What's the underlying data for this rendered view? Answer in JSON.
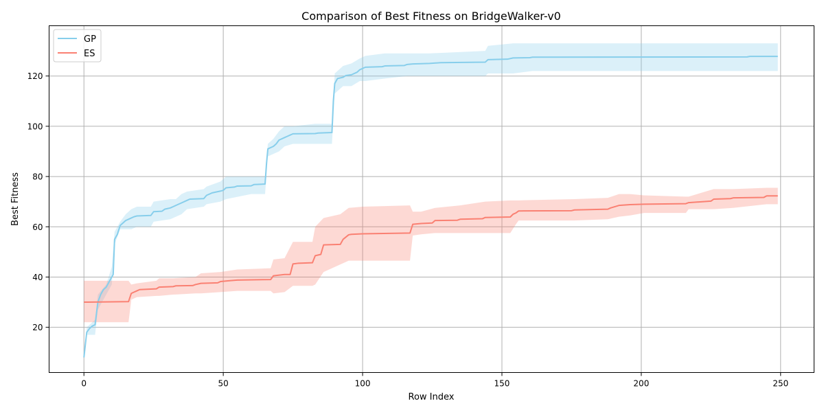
{
  "chart_data": {
    "type": "line",
    "title": "Comparison of Best Fitness on BridgeWalker-v0",
    "xlabel": "Row Index",
    "ylabel": "Best Fitness",
    "xlim": [
      -12.5,
      262
    ],
    "ylim": [
      2,
      140
    ],
    "xticks": [
      0,
      50,
      100,
      150,
      200,
      250
    ],
    "yticks": [
      20,
      40,
      60,
      80,
      100,
      120
    ],
    "grid": true,
    "legend_position": "upper-left",
    "series": [
      {
        "name": "GP",
        "color": "#87ceeb",
        "band_color": "#87ceeb",
        "mean": [
          [
            0,
            8
          ],
          [
            1,
            18
          ],
          [
            2,
            19.5
          ],
          [
            3,
            20.5
          ],
          [
            4,
            21
          ],
          [
            5,
            30
          ],
          [
            6,
            33
          ],
          [
            7,
            35
          ],
          [
            8,
            36
          ],
          [
            9,
            38
          ],
          [
            10,
            40
          ],
          [
            10.5,
            41
          ],
          [
            11,
            55
          ],
          [
            12,
            57
          ],
          [
            13,
            60.5
          ],
          [
            14,
            61.5
          ],
          [
            15,
            62.5
          ],
          [
            16,
            63
          ],
          [
            17,
            63.5
          ],
          [
            18,
            64
          ],
          [
            19,
            64.3
          ],
          [
            24,
            64.5
          ],
          [
            25,
            66
          ],
          [
            28,
            66.2
          ],
          [
            29,
            67
          ],
          [
            31,
            67.5
          ],
          [
            33,
            68.5
          ],
          [
            35,
            69.5
          ],
          [
            37,
            70.5
          ],
          [
            38,
            71
          ],
          [
            43,
            71.2
          ],
          [
            44,
            72.5
          ],
          [
            46,
            73.5
          ],
          [
            49,
            74.2
          ],
          [
            50,
            74.5
          ],
          [
            51,
            75.5
          ],
          [
            54,
            75.8
          ],
          [
            55,
            76.2
          ],
          [
            60,
            76.3
          ],
          [
            61,
            76.8
          ],
          [
            65,
            77
          ],
          [
            65.5,
            85
          ],
          [
            66,
            91
          ],
          [
            68,
            92
          ],
          [
            69,
            93
          ],
          [
            70,
            94.5
          ],
          [
            72,
            95.5
          ],
          [
            73,
            96
          ],
          [
            74,
            96.5
          ],
          [
            75,
            97
          ],
          [
            83,
            97.1
          ],
          [
            84,
            97.3
          ],
          [
            89,
            97.5
          ],
          [
            89.5,
            110
          ],
          [
            90,
            117
          ],
          [
            91,
            119
          ],
          [
            93,
            119.5
          ],
          [
            94,
            120.2
          ],
          [
            96,
            120.5
          ],
          [
            98,
            121.5
          ],
          [
            99,
            122.5
          ],
          [
            100,
            123
          ],
          [
            101,
            123.5
          ],
          [
            107,
            123.7
          ],
          [
            108,
            124
          ],
          [
            115,
            124.2
          ],
          [
            116,
            124.6
          ],
          [
            118,
            124.8
          ],
          [
            124,
            125
          ],
          [
            128,
            125.3
          ],
          [
            144,
            125.5
          ],
          [
            145,
            126.5
          ],
          [
            152,
            126.7
          ],
          [
            154,
            127.2
          ],
          [
            160,
            127.3
          ],
          [
            161,
            127.5
          ],
          [
            238,
            127.6
          ],
          [
            239,
            127.8
          ],
          [
            249,
            127.8
          ]
        ],
        "band": [
          [
            0,
            8,
            8
          ],
          [
            1,
            17,
            20
          ],
          [
            4,
            17,
            23
          ],
          [
            5,
            27,
            33
          ],
          [
            8,
            33,
            37
          ],
          [
            10,
            37,
            44
          ],
          [
            11,
            53,
            58
          ],
          [
            13,
            59,
            62
          ],
          [
            15,
            59,
            65
          ],
          [
            17,
            59,
            67
          ],
          [
            19,
            60,
            68
          ],
          [
            24,
            60,
            68
          ],
          [
            25,
            62,
            70
          ],
          [
            31,
            63,
            71
          ],
          [
            33,
            64,
            71
          ],
          [
            35,
            65,
            73
          ],
          [
            37,
            67,
            74
          ],
          [
            43,
            68,
            75
          ],
          [
            44,
            69,
            76
          ],
          [
            49,
            70,
            78
          ],
          [
            51,
            71,
            80
          ],
          [
            60,
            73,
            80
          ],
          [
            65,
            73,
            80
          ],
          [
            66,
            88,
            93
          ],
          [
            68,
            89,
            95
          ],
          [
            70,
            90,
            98
          ],
          [
            72,
            92,
            100
          ],
          [
            75,
            93,
            100
          ],
          [
            83,
            93,
            101
          ],
          [
            89,
            93,
            101
          ],
          [
            90,
            113,
            121
          ],
          [
            93,
            116,
            124
          ],
          [
            96,
            116,
            125
          ],
          [
            99,
            118,
            127
          ],
          [
            101,
            118,
            128
          ],
          [
            108,
            119,
            129
          ],
          [
            116,
            120,
            129
          ],
          [
            124,
            120,
            129
          ],
          [
            144,
            120,
            130
          ],
          [
            145,
            121,
            132
          ],
          [
            154,
            121,
            133
          ],
          [
            161,
            122,
            133
          ],
          [
            249,
            122,
            133
          ]
        ]
      },
      {
        "name": "ES",
        "color": "#fa8072",
        "band_color": "#fa8072",
        "mean": [
          [
            0,
            30
          ],
          [
            16,
            30.2
          ],
          [
            17,
            33.5
          ],
          [
            18,
            34
          ],
          [
            19,
            34.5
          ],
          [
            20,
            35
          ],
          [
            26,
            35.3
          ],
          [
            27,
            36
          ],
          [
            32,
            36.2
          ],
          [
            33,
            36.5
          ],
          [
            39,
            36.6
          ],
          [
            40,
            37
          ],
          [
            42,
            37.5
          ],
          [
            48,
            37.7
          ],
          [
            49,
            38.2
          ],
          [
            52,
            38.5
          ],
          [
            55,
            38.8
          ],
          [
            67,
            39
          ],
          [
            68,
            40.5
          ],
          [
            72,
            41
          ],
          [
            74,
            41
          ],
          [
            75,
            45.2
          ],
          [
            77,
            45.5
          ],
          [
            82,
            45.7
          ],
          [
            83,
            48.5
          ],
          [
            85,
            49
          ],
          [
            86,
            52.8
          ],
          [
            92,
            53
          ],
          [
            93,
            55
          ],
          [
            95,
            56.8
          ],
          [
            96,
            57
          ],
          [
            100,
            57.2
          ],
          [
            117,
            57.5
          ],
          [
            118,
            61
          ],
          [
            121,
            61.3
          ],
          [
            125,
            61.5
          ],
          [
            126,
            62.5
          ],
          [
            134,
            62.6
          ],
          [
            135,
            63
          ],
          [
            143,
            63.2
          ],
          [
            144,
            63.7
          ],
          [
            153,
            63.9
          ],
          [
            154,
            65
          ],
          [
            155,
            65.5
          ],
          [
            156,
            66.3
          ],
          [
            175,
            66.4
          ],
          [
            176,
            66.7
          ],
          [
            188,
            67
          ],
          [
            189,
            67.5
          ],
          [
            192,
            68.5
          ],
          [
            196,
            68.8
          ],
          [
            201,
            69
          ],
          [
            216,
            69.2
          ],
          [
            217,
            69.6
          ],
          [
            225,
            70.2
          ],
          [
            226,
            71
          ],
          [
            232,
            71.2
          ],
          [
            233,
            71.5
          ],
          [
            244,
            71.7
          ],
          [
            245,
            72.3
          ],
          [
            249,
            72.3
          ]
        ],
        "band": [
          [
            0,
            22,
            38.5
          ],
          [
            15,
            22,
            38.5
          ],
          [
            16,
            22,
            38.5
          ],
          [
            17,
            31,
            37
          ],
          [
            19,
            32,
            37.5
          ],
          [
            26,
            32.5,
            38.5
          ],
          [
            27,
            32.5,
            39.5
          ],
          [
            32,
            33,
            39.5
          ],
          [
            40,
            33.5,
            40
          ],
          [
            42,
            33.5,
            41.5
          ],
          [
            49,
            34,
            42
          ],
          [
            55,
            34.5,
            43
          ],
          [
            67,
            34.5,
            43.5
          ],
          [
            68,
            33.5,
            47
          ],
          [
            72,
            34,
            47.5
          ],
          [
            75,
            36.5,
            54
          ],
          [
            82,
            36.5,
            54
          ],
          [
            83,
            37,
            60
          ],
          [
            86,
            42,
            63.5
          ],
          [
            92,
            45,
            65
          ],
          [
            95,
            46.5,
            67.5
          ],
          [
            100,
            46.5,
            68
          ],
          [
            117,
            46.5,
            68.5
          ],
          [
            118,
            56.5,
            66
          ],
          [
            121,
            57,
            66
          ],
          [
            126,
            57.5,
            67.5
          ],
          [
            135,
            57.5,
            68.5
          ],
          [
            144,
            57.5,
            70
          ],
          [
            153,
            57.5,
            70.5
          ],
          [
            155,
            61,
            70.5
          ],
          [
            156,
            62.5,
            70.5
          ],
          [
            176,
            62.5,
            71
          ],
          [
            188,
            63,
            71.5
          ],
          [
            192,
            64,
            73
          ],
          [
            196,
            64.5,
            73
          ],
          [
            201,
            65.5,
            72.5
          ],
          [
            216,
            65.5,
            72
          ],
          [
            217,
            67,
            72
          ],
          [
            226,
            67,
            75
          ],
          [
            233,
            67.5,
            75
          ],
          [
            245,
            69,
            75.5
          ],
          [
            249,
            69,
            75.5
          ]
        ]
      }
    ]
  }
}
